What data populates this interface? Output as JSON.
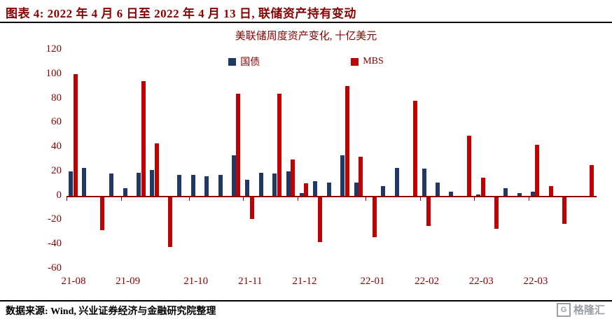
{
  "header": {
    "title": "图表 4: 2022 年 4 月 6 日至 2022 年 4 月 13 日, 联储资产持有变动"
  },
  "chart_data": {
    "type": "bar",
    "title": "美联储周度资产变化, 十亿美元",
    "ylim": [
      -60,
      120
    ],
    "y_ticks": [
      120,
      100,
      80,
      60,
      40,
      20,
      0,
      -20,
      -40,
      -60
    ],
    "x_tick_labels": [
      "21-08",
      "21-09",
      "21-10",
      "21-11",
      "21-12",
      "22-01",
      "22-02",
      "22-03",
      "22-03"
    ],
    "x_tick_week_index": [
      0,
      4,
      9,
      13,
      17,
      22,
      26,
      30,
      34
    ],
    "x_unit": "week",
    "grid": false,
    "legend_position": "top-center",
    "series": [
      {
        "name": "国债",
        "color": "#1F3864",
        "values": [
          20,
          23,
          0,
          18,
          6,
          19,
          21,
          0,
          17,
          17,
          16,
          17,
          33,
          13,
          19,
          18,
          20,
          2,
          12,
          11,
          33,
          11,
          0,
          8,
          23,
          0,
          22,
          11,
          3,
          0,
          1,
          0,
          6,
          2,
          3,
          0,
          0,
          0,
          0
        ]
      },
      {
        "name": "MBS",
        "color": "#C00000",
        "values": [
          100,
          0,
          -27,
          0,
          0,
          94,
          43,
          -41,
          0,
          0,
          0,
          0,
          84,
          -18,
          0,
          84,
          30,
          10,
          -37,
          0,
          90,
          32,
          -33,
          0,
          0,
          78,
          -24,
          0,
          0,
          49,
          15,
          -26,
          0,
          0,
          42,
          8,
          -22,
          0,
          25
        ]
      }
    ]
  },
  "footer": {
    "source": "数据来源: Wind, 兴业证券经济与金融研究院整理",
    "logo_text": "格隆汇",
    "logo_icon_letter": "G"
  }
}
